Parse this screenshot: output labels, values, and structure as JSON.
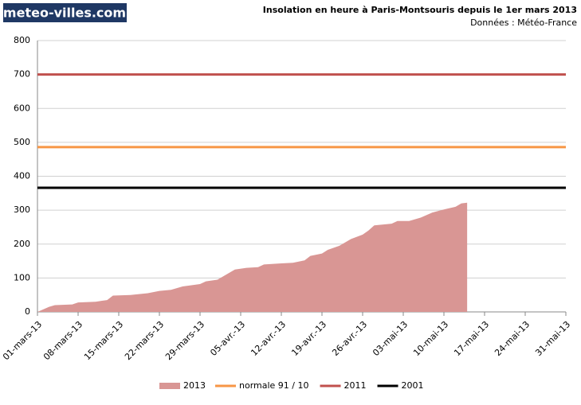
{
  "chart_data": {
    "type": "area",
    "watermark": "meteo-villes.com",
    "title": "Insolation en heure à Paris-Montsouris  depuis le 1er mars 2013",
    "subtitle": "Données : Météo-France",
    "x": [
      "2013-03-01",
      "2013-03-03",
      "2013-03-04",
      "2013-03-07",
      "2013-03-08",
      "2013-03-11",
      "2013-03-13",
      "2013-03-14",
      "2013-03-17",
      "2013-03-20",
      "2013-03-22",
      "2013-03-24",
      "2013-03-26",
      "2013-03-29",
      "2013-03-30",
      "2013-04-01",
      "2013-04-03",
      "2013-04-04",
      "2013-04-06",
      "2013-04-08",
      "2013-04-09",
      "2013-04-12",
      "2013-04-14",
      "2013-04-16",
      "2013-04-17",
      "2013-04-19",
      "2013-04-20",
      "2013-04-22",
      "2013-04-24",
      "2013-04-26",
      "2013-04-27",
      "2013-04-28",
      "2013-05-01",
      "2013-05-02",
      "2013-05-04",
      "2013-05-06",
      "2013-05-08",
      "2013-05-10",
      "2013-05-12",
      "2013-05-13",
      "2013-05-14"
    ],
    "series": [
      {
        "name": "2013",
        "color": "#d99694",
        "values": [
          0,
          15,
          20,
          22,
          28,
          30,
          35,
          48,
          50,
          55,
          62,
          65,
          75,
          82,
          90,
          95,
          115,
          125,
          130,
          132,
          140,
          143,
          145,
          152,
          165,
          172,
          183,
          195,
          215,
          228,
          240,
          255,
          260,
          268,
          268,
          278,
          293,
          302,
          310,
          320,
          322
        ]
      }
    ],
    "reference_lines": [
      {
        "name": "normale 91 / 10",
        "color": "#f79646",
        "value": 486
      },
      {
        "name": "2011",
        "color": "#c0504d",
        "value": 700
      },
      {
        "name": "2001",
        "color": "#000000",
        "value": 366
      }
    ],
    "xlim": [
      "2013-03-01",
      "2013-05-31"
    ],
    "xticks": [
      {
        "value": "2013-03-01",
        "label": "01-mars-13"
      },
      {
        "value": "2013-03-08",
        "label": "08-mars-13"
      },
      {
        "value": "2013-03-15",
        "label": "15-mars-13"
      },
      {
        "value": "2013-03-22",
        "label": "22-mars-13"
      },
      {
        "value": "2013-03-29",
        "label": "29-mars-13"
      },
      {
        "value": "2013-04-05",
        "label": "05-avr.-13"
      },
      {
        "value": "2013-04-12",
        "label": "12-avr.-13"
      },
      {
        "value": "2013-04-19",
        "label": "19-avr.-13"
      },
      {
        "value": "2013-04-26",
        "label": "26-avr.-13"
      },
      {
        "value": "2013-05-03",
        "label": "03-mai-13"
      },
      {
        "value": "2013-05-10",
        "label": "10-mai-13"
      },
      {
        "value": "2013-05-17",
        "label": "17-mai-13"
      },
      {
        "value": "2013-05-24",
        "label": "24-mai-13"
      },
      {
        "value": "2013-05-31",
        "label": "31-mai-13"
      }
    ],
    "ylim": [
      0,
      800
    ],
    "yticks": [
      0,
      100,
      200,
      300,
      400,
      500,
      600,
      700,
      800
    ],
    "grid": true
  }
}
